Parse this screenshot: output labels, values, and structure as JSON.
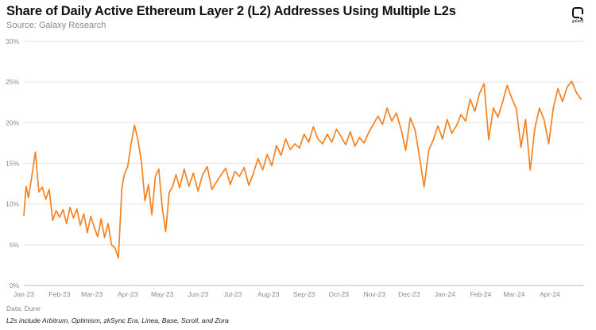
{
  "header": {
    "title": "Share of Daily Active Ethereum Layer 2 (L2) Addresses Using Multiple L2s",
    "source": "Source: Galaxy Research",
    "logo_text": "galaxy"
  },
  "footer": {
    "data_note": "Data: Dune",
    "l2s_note": "L2s include Arbitrum, Optimism, zkSync Era, Linea, Base, Scroll, and Zora"
  },
  "colors": {
    "line": "#f58220",
    "grid": "#e3e3e3",
    "axis": "#bdbdbd"
  },
  "chart_data": {
    "type": "line",
    "title": "Share of Daily Active Ethereum Layer 2 (L2) Addresses Using Multiple L2s",
    "xlabel": "",
    "ylabel": "",
    "ylim": [
      0,
      30
    ],
    "yticks": [
      "0%",
      "5%",
      "10%",
      "15%",
      "20%",
      "25%",
      "30%"
    ],
    "xticks": [
      "Jan-23",
      "Feb-23",
      "Mar-23",
      "Apr-23",
      "May-23",
      "Jun-23",
      "Jul-23",
      "Aug-23",
      "Sep-23",
      "Oct-23",
      "Nov-23",
      "Dec-23",
      "Jan-24",
      "Feb-24",
      "Mar-24",
      "Apr-24"
    ],
    "grid": "horizontal",
    "legend": "none",
    "series": [
      {
        "name": "",
        "x": [
          "2023-01-01",
          "2023-01-03",
          "2023-01-05",
          "2023-01-08",
          "2023-01-11",
          "2023-01-14",
          "2023-01-17",
          "2023-01-20",
          "2023-01-23",
          "2023-01-26",
          "2023-01-29",
          "2023-02-01",
          "2023-02-04",
          "2023-02-07",
          "2023-02-10",
          "2023-02-13",
          "2023-02-16",
          "2023-02-19",
          "2023-02-22",
          "2023-02-25",
          "2023-02-28",
          "2023-03-03",
          "2023-03-06",
          "2023-03-09",
          "2023-03-12",
          "2023-03-15",
          "2023-03-18",
          "2023-03-21",
          "2023-03-24",
          "2023-03-27",
          "2023-03-29",
          "2023-04-01",
          "2023-04-04",
          "2023-04-07",
          "2023-04-10",
          "2023-04-13",
          "2023-04-16",
          "2023-04-19",
          "2023-04-22",
          "2023-04-25",
          "2023-04-28",
          "2023-05-01",
          "2023-05-04",
          "2023-05-07",
          "2023-05-10",
          "2023-05-13",
          "2023-05-16",
          "2023-05-20",
          "2023-05-24",
          "2023-05-28",
          "2023-06-01",
          "2023-06-05",
          "2023-06-09",
          "2023-06-13",
          "2023-06-17",
          "2023-06-21",
          "2023-06-25",
          "2023-06-29",
          "2023-07-03",
          "2023-07-07",
          "2023-07-11",
          "2023-07-15",
          "2023-07-19",
          "2023-07-23",
          "2023-07-27",
          "2023-07-31",
          "2023-08-04",
          "2023-08-08",
          "2023-08-12",
          "2023-08-16",
          "2023-08-20",
          "2023-08-24",
          "2023-08-28",
          "2023-09-01",
          "2023-09-05",
          "2023-09-09",
          "2023-09-13",
          "2023-09-17",
          "2023-09-21",
          "2023-09-25",
          "2023-09-29",
          "2023-10-03",
          "2023-10-07",
          "2023-10-11",
          "2023-10-15",
          "2023-10-19",
          "2023-10-23",
          "2023-10-27",
          "2023-10-31",
          "2023-11-04",
          "2023-11-08",
          "2023-11-12",
          "2023-11-16",
          "2023-11-20",
          "2023-11-24",
          "2023-11-28",
          "2023-12-02",
          "2023-12-06",
          "2023-12-10",
          "2023-12-14",
          "2023-12-18",
          "2023-12-22",
          "2023-12-26",
          "2023-12-30",
          "2024-01-03",
          "2024-01-07",
          "2024-01-11",
          "2024-01-15",
          "2024-01-19",
          "2024-01-23",
          "2024-01-27",
          "2024-01-31",
          "2024-02-04",
          "2024-02-08",
          "2024-02-12",
          "2024-02-16",
          "2024-02-20",
          "2024-02-24",
          "2024-02-28",
          "2024-03-03",
          "2024-03-07",
          "2024-03-11",
          "2024-03-15",
          "2024-03-19",
          "2024-03-23",
          "2024-03-27",
          "2024-03-31",
          "2024-04-04",
          "2024-04-08",
          "2024-04-12",
          "2024-04-16",
          "2024-04-20",
          "2024-04-24",
          "2024-04-28"
        ],
        "values": [
          8.6,
          12.2,
          10.8,
          13.5,
          16.4,
          11.5,
          12.1,
          10.6,
          11.8,
          8.0,
          9.2,
          8.4,
          9.3,
          7.6,
          9.6,
          8.3,
          9.4,
          7.4,
          8.8,
          6.5,
          8.5,
          7.2,
          6.0,
          8.2,
          5.9,
          7.6,
          5.0,
          4.6,
          3.4,
          12.0,
          13.6,
          14.6,
          17.4,
          19.7,
          17.8,
          15.1,
          10.4,
          12.4,
          8.7,
          13.4,
          14.3,
          9.5,
          6.6,
          11.4,
          12.2,
          13.6,
          12.0,
          14.3,
          12.2,
          13.8,
          11.6,
          13.6,
          14.6,
          11.8,
          12.7,
          13.6,
          14.4,
          12.4,
          14.0,
          13.4,
          14.5,
          12.3,
          13.8,
          15.6,
          14.2,
          16.1,
          14.7,
          17.2,
          16.0,
          18.0,
          16.7,
          17.4,
          16.9,
          18.6,
          17.6,
          19.5,
          18.0,
          17.4,
          18.6,
          17.6,
          19.2,
          18.3,
          17.3,
          18.9,
          17.1,
          18.2,
          17.5,
          18.8,
          19.8,
          20.8,
          19.8,
          21.8,
          20.2,
          21.2,
          19.2,
          16.6,
          20.6,
          19.2,
          15.8,
          12.1,
          16.6,
          17.9,
          19.6,
          18.0,
          20.4,
          18.7,
          19.6,
          21.0,
          20.2,
          22.9,
          21.4,
          23.6,
          24.8,
          17.9,
          21.8,
          20.7,
          22.5,
          24.6,
          23.0,
          21.7,
          17.0,
          20.4,
          14.2,
          19.3,
          21.8,
          20.4,
          17.4,
          21.8,
          24.2,
          22.6,
          24.4,
          25.1,
          23.7,
          22.9
        ]
      }
    ]
  }
}
